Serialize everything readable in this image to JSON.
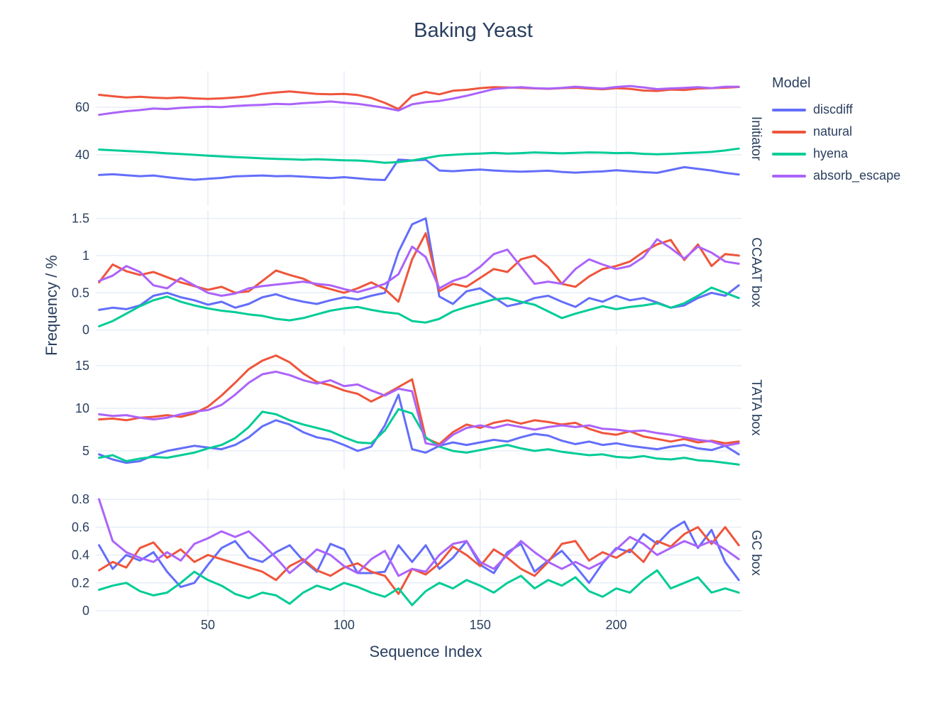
{
  "title": "Baking Yeast",
  "text_color": "#2a3f5f",
  "grid_color": "#e5ecf6",
  "chart_data": {
    "type": "line",
    "title": "Baking Yeast",
    "xlabel": "Sequence Index",
    "ylabel": "Frequency / %",
    "grid": true,
    "legend_position": "right",
    "legend": {
      "title": "Model",
      "entries": [
        {
          "label": "discdiff",
          "color": "#636EFA"
        },
        {
          "label": "natural",
          "color": "#EF553B"
        },
        {
          "label": "hyena",
          "color": "#00CC96"
        },
        {
          "label": "absorb_escape",
          "color": "#AB63FA"
        }
      ]
    },
    "x_range": [
      8.8,
      246
    ],
    "x_ticks": [
      50,
      100,
      150,
      200
    ],
    "x": [
      10,
      15,
      20,
      25,
      30,
      35,
      40,
      45,
      50,
      55,
      60,
      65,
      70,
      75,
      80,
      85,
      90,
      95,
      100,
      105,
      110,
      115,
      120,
      125,
      130,
      135,
      140,
      145,
      150,
      155,
      160,
      165,
      170,
      175,
      180,
      185,
      190,
      195,
      200,
      205,
      210,
      215,
      220,
      225,
      230,
      235,
      240,
      245
    ],
    "panels": [
      {
        "label": "Initiator",
        "y_range": [
          18.5,
          75.2
        ],
        "y_ticks": [
          40,
          60
        ],
        "series": {
          "discdiff": [
            31.5,
            31.8,
            31.4,
            31.0,
            31.3,
            30.6,
            30.0,
            29.5,
            29.9,
            30.3,
            30.9,
            31.1,
            31.3,
            31.0,
            31.1,
            30.8,
            30.5,
            30.2,
            30.6,
            30.1,
            29.6,
            29.4,
            38.0,
            37.6,
            37.9,
            33.4,
            33.1,
            33.5,
            33.8,
            33.4,
            33.1,
            32.9,
            33.1,
            33.3,
            32.8,
            32.5,
            32.8,
            33.0,
            33.5,
            33.1,
            32.7,
            32.4,
            33.6,
            34.8,
            34.1,
            33.4,
            32.4,
            31.7
          ],
          "natural": [
            65.2,
            64.6,
            64.1,
            64.4,
            64.0,
            63.8,
            64.1,
            63.7,
            63.5,
            63.7,
            64.1,
            64.6,
            65.6,
            66.2,
            66.6,
            66.1,
            65.6,
            65.4,
            65.6,
            65.1,
            63.9,
            61.8,
            59.2,
            64.8,
            66.4,
            65.4,
            66.9,
            67.3,
            68.0,
            68.4,
            68.3,
            68.1,
            67.9,
            67.7,
            68.0,
            68.2,
            67.8,
            67.5,
            68.0,
            67.7,
            67.0,
            66.8,
            67.4,
            67.2,
            67.8,
            68.0,
            68.2,
            68.5
          ],
          "hyena": [
            42.2,
            41.9,
            41.6,
            41.3,
            41.0,
            40.6,
            40.3,
            40.0,
            39.6,
            39.3,
            39.0,
            38.8,
            38.5,
            38.3,
            38.1,
            37.9,
            38.1,
            37.9,
            37.7,
            37.6,
            37.2,
            36.6,
            36.9,
            37.6,
            38.6,
            39.6,
            40.0,
            40.3,
            40.5,
            40.8,
            40.5,
            40.7,
            41.0,
            40.8,
            40.6,
            40.8,
            41.0,
            40.9,
            40.7,
            40.8,
            40.4,
            40.2,
            40.4,
            40.7,
            40.9,
            41.2,
            41.8,
            42.6
          ],
          "absorb_escape": [
            56.8,
            57.6,
            58.3,
            58.8,
            59.4,
            59.2,
            59.7,
            60.0,
            60.2,
            60.0,
            60.5,
            60.8,
            61.0,
            61.4,
            61.2,
            61.7,
            62.0,
            62.4,
            61.9,
            61.4,
            60.6,
            59.7,
            58.6,
            61.2,
            62.1,
            62.6,
            63.6,
            64.8,
            66.2,
            67.6,
            68.1,
            68.4,
            68.0,
            67.8,
            68.1,
            68.6,
            68.2,
            67.8,
            68.5,
            68.9,
            68.3,
            67.6,
            67.9,
            68.1,
            68.4,
            68.0,
            68.6,
            68.6
          ]
        }
      },
      {
        "label": "CCAAT box",
        "y_range": [
          -0.06,
          1.61
        ],
        "y_ticks": [
          0,
          0.5,
          1,
          1.5
        ],
        "series": {
          "discdiff": [
            0.27,
            0.3,
            0.28,
            0.33,
            0.46,
            0.5,
            0.44,
            0.4,
            0.34,
            0.38,
            0.3,
            0.35,
            0.44,
            0.48,
            0.42,
            0.38,
            0.35,
            0.4,
            0.44,
            0.41,
            0.46,
            0.5,
            1.05,
            1.42,
            1.5,
            0.45,
            0.35,
            0.52,
            0.56,
            0.44,
            0.32,
            0.36,
            0.43,
            0.46,
            0.38,
            0.31,
            0.43,
            0.38,
            0.46,
            0.4,
            0.43,
            0.37,
            0.3,
            0.33,
            0.43,
            0.5,
            0.46,
            0.6
          ],
          "natural": [
            0.64,
            0.88,
            0.79,
            0.74,
            0.78,
            0.71,
            0.64,
            0.59,
            0.54,
            0.58,
            0.5,
            0.52,
            0.66,
            0.8,
            0.74,
            0.69,
            0.6,
            0.55,
            0.5,
            0.56,
            0.64,
            0.55,
            0.38,
            0.95,
            1.3,
            0.52,
            0.62,
            0.58,
            0.7,
            0.82,
            0.78,
            0.95,
            1.0,
            0.85,
            0.62,
            0.58,
            0.72,
            0.82,
            0.86,
            0.92,
            1.05,
            1.15,
            1.21,
            0.94,
            1.15,
            0.86,
            1.02,
            1.0
          ],
          "hyena": [
            0.05,
            0.12,
            0.22,
            0.32,
            0.4,
            0.45,
            0.38,
            0.33,
            0.29,
            0.26,
            0.24,
            0.21,
            0.19,
            0.15,
            0.13,
            0.16,
            0.21,
            0.26,
            0.29,
            0.31,
            0.27,
            0.24,
            0.22,
            0.12,
            0.1,
            0.15,
            0.25,
            0.31,
            0.36,
            0.41,
            0.43,
            0.38,
            0.34,
            0.25,
            0.16,
            0.22,
            0.27,
            0.32,
            0.28,
            0.31,
            0.33,
            0.36,
            0.3,
            0.36,
            0.46,
            0.57,
            0.5,
            0.43
          ],
          "absorb_escape": [
            0.66,
            0.73,
            0.86,
            0.78,
            0.6,
            0.56,
            0.7,
            0.6,
            0.5,
            0.46,
            0.49,
            0.56,
            0.59,
            0.61,
            0.63,
            0.65,
            0.62,
            0.6,
            0.55,
            0.51,
            0.56,
            0.62,
            0.75,
            1.12,
            0.98,
            0.56,
            0.66,
            0.72,
            0.85,
            1.02,
            1.08,
            0.85,
            0.62,
            0.65,
            0.62,
            0.82,
            0.95,
            0.88,
            0.82,
            0.86,
            0.98,
            1.22,
            1.1,
            0.96,
            1.12,
            1.04,
            0.92,
            0.89
          ]
        }
      },
      {
        "label": "TATA box",
        "y_range": [
          2.83,
          17.33
        ],
        "y_ticks": [
          5,
          10,
          15
        ],
        "series": {
          "discdiff": [
            4.6,
            4.0,
            3.6,
            3.8,
            4.5,
            5.0,
            5.3,
            5.6,
            5.4,
            5.2,
            5.7,
            6.6,
            7.9,
            8.6,
            8.1,
            7.2,
            6.6,
            6.3,
            5.7,
            5.0,
            5.5,
            8.0,
            11.6,
            5.2,
            4.8,
            5.6,
            6.0,
            5.7,
            6.0,
            6.3,
            6.1,
            6.6,
            7.0,
            6.8,
            6.2,
            5.8,
            6.1,
            5.7,
            5.9,
            5.6,
            5.4,
            5.2,
            5.5,
            5.7,
            5.3,
            5.1,
            5.6,
            4.6
          ],
          "natural": [
            8.7,
            8.8,
            8.6,
            8.9,
            9.0,
            9.2,
            9.0,
            9.4,
            10.2,
            11.5,
            13.0,
            14.6,
            15.6,
            16.2,
            15.4,
            14.1,
            13.1,
            12.7,
            12.1,
            11.7,
            10.8,
            11.6,
            12.5,
            13.4,
            6.5,
            5.8,
            7.2,
            8.1,
            7.7,
            8.3,
            8.6,
            8.2,
            8.6,
            8.4,
            8.1,
            8.3,
            7.6,
            7.1,
            6.9,
            7.3,
            6.7,
            6.4,
            6.1,
            6.4,
            6.0,
            6.2,
            5.9,
            6.1
          ],
          "hyena": [
            4.2,
            4.5,
            3.8,
            4.1,
            4.3,
            4.2,
            4.5,
            4.8,
            5.3,
            5.7,
            6.5,
            7.8,
            9.6,
            9.3,
            8.6,
            8.1,
            7.7,
            7.3,
            6.6,
            6.0,
            5.9,
            7.4,
            9.9,
            9.4,
            6.6,
            5.5,
            5.0,
            4.8,
            5.1,
            5.4,
            5.7,
            5.3,
            5.0,
            5.2,
            4.9,
            4.7,
            4.5,
            4.6,
            4.3,
            4.2,
            4.4,
            4.1,
            4.0,
            4.2,
            3.9,
            3.8,
            3.6,
            3.4
          ],
          "absorb_escape": [
            9.3,
            9.1,
            9.2,
            8.9,
            8.7,
            8.9,
            9.3,
            9.6,
            9.8,
            10.4,
            11.6,
            13.0,
            14.0,
            14.3,
            13.9,
            13.3,
            12.9,
            13.3,
            12.6,
            12.8,
            12.1,
            11.5,
            12.3,
            12.0,
            5.9,
            5.6,
            6.9,
            7.7,
            8.0,
            7.7,
            8.1,
            7.8,
            7.5,
            7.8,
            8.0,
            7.8,
            8.0,
            7.6,
            7.5,
            7.3,
            7.4,
            7.1,
            6.9,
            6.6,
            6.3,
            6.1,
            5.6,
            5.9
          ]
        }
      },
      {
        "label": "GC box",
        "y_range": [
          -0.041,
          0.872
        ],
        "y_ticks": [
          0,
          0.2,
          0.4,
          0.6,
          0.8
        ],
        "series": {
          "discdiff": [
            0.47,
            0.3,
            0.4,
            0.36,
            0.42,
            0.28,
            0.17,
            0.2,
            0.33,
            0.45,
            0.5,
            0.38,
            0.35,
            0.42,
            0.47,
            0.36,
            0.28,
            0.48,
            0.44,
            0.27,
            0.27,
            0.28,
            0.47,
            0.35,
            0.47,
            0.3,
            0.38,
            0.5,
            0.33,
            0.27,
            0.42,
            0.48,
            0.28,
            0.36,
            0.43,
            0.32,
            0.2,
            0.34,
            0.45,
            0.42,
            0.55,
            0.48,
            0.58,
            0.64,
            0.45,
            0.58,
            0.35,
            0.22
          ],
          "natural": [
            0.29,
            0.35,
            0.31,
            0.45,
            0.49,
            0.38,
            0.44,
            0.35,
            0.4,
            0.37,
            0.34,
            0.31,
            0.28,
            0.22,
            0.32,
            0.37,
            0.29,
            0.25,
            0.31,
            0.34,
            0.28,
            0.25,
            0.12,
            0.3,
            0.26,
            0.34,
            0.46,
            0.4,
            0.32,
            0.44,
            0.38,
            0.3,
            0.25,
            0.35,
            0.48,
            0.5,
            0.36,
            0.42,
            0.38,
            0.44,
            0.35,
            0.5,
            0.46,
            0.55,
            0.6,
            0.48,
            0.6,
            0.47
          ],
          "hyena": [
            0.15,
            0.18,
            0.2,
            0.14,
            0.11,
            0.13,
            0.2,
            0.28,
            0.22,
            0.18,
            0.12,
            0.09,
            0.13,
            0.11,
            0.05,
            0.13,
            0.18,
            0.15,
            0.2,
            0.17,
            0.13,
            0.1,
            0.16,
            0.04,
            0.14,
            0.2,
            0.16,
            0.22,
            0.18,
            0.13,
            0.2,
            0.25,
            0.16,
            0.22,
            0.18,
            0.24,
            0.14,
            0.1,
            0.16,
            0.13,
            0.22,
            0.29,
            0.16,
            0.2,
            0.24,
            0.13,
            0.16,
            0.13
          ],
          "absorb_escape": [
            0.8,
            0.5,
            0.42,
            0.38,
            0.35,
            0.42,
            0.36,
            0.48,
            0.52,
            0.57,
            0.53,
            0.57,
            0.48,
            0.38,
            0.27,
            0.35,
            0.44,
            0.4,
            0.32,
            0.27,
            0.37,
            0.43,
            0.25,
            0.3,
            0.28,
            0.4,
            0.48,
            0.5,
            0.35,
            0.3,
            0.4,
            0.5,
            0.42,
            0.35,
            0.3,
            0.35,
            0.3,
            0.35,
            0.44,
            0.53,
            0.48,
            0.4,
            0.45,
            0.5,
            0.46,
            0.5,
            0.44,
            0.37
          ]
        }
      }
    ]
  }
}
